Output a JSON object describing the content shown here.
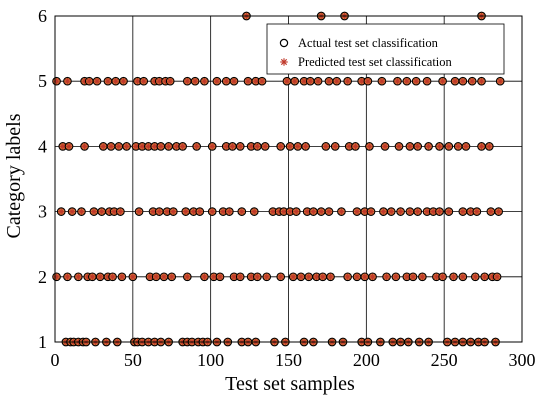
{
  "chart_data": {
    "type": "scatter",
    "title": "",
    "xlabel": "Test set samples",
    "ylabel": "Category labels",
    "xlim": [
      0,
      300
    ],
    "ylim": [
      1,
      6
    ],
    "xticks": [
      "0",
      "50",
      "100",
      "150",
      "200",
      "250",
      "300"
    ],
    "yticks": [
      "1",
      "2",
      "3",
      "4",
      "5",
      "6"
    ],
    "grid": true,
    "legend_position": "top-right",
    "series": [
      {
        "name": "Actual test set classification",
        "marker": "open-circle",
        "color": "#000000",
        "points": [
          [
            7,
            1
          ],
          [
            10,
            1
          ],
          [
            12,
            1
          ],
          [
            15,
            1
          ],
          [
            18,
            1
          ],
          [
            20,
            1
          ],
          [
            26,
            1
          ],
          [
            33,
            1
          ],
          [
            40,
            1
          ],
          [
            51,
            1
          ],
          [
            53,
            1
          ],
          [
            56,
            1
          ],
          [
            60,
            1
          ],
          [
            64,
            1
          ],
          [
            68,
            1
          ],
          [
            73,
            1
          ],
          [
            82,
            1
          ],
          [
            85,
            1
          ],
          [
            88,
            1
          ],
          [
            92,
            1
          ],
          [
            95,
            1
          ],
          [
            98,
            1
          ],
          [
            104,
            1
          ],
          [
            111,
            1
          ],
          [
            120,
            1
          ],
          [
            124,
            1
          ],
          [
            129,
            1
          ],
          [
            141,
            1
          ],
          [
            148,
            1
          ],
          [
            160,
            1
          ],
          [
            166,
            1
          ],
          [
            178,
            1
          ],
          [
            185,
            1
          ],
          [
            197,
            1
          ],
          [
            201,
            1
          ],
          [
            209,
            1
          ],
          [
            217,
            1
          ],
          [
            222,
            1
          ],
          [
            227,
            1
          ],
          [
            234,
            1
          ],
          [
            240,
            1
          ],
          [
            252,
            1
          ],
          [
            257,
            1
          ],
          [
            262,
            1
          ],
          [
            267,
            1
          ],
          [
            272,
            1
          ],
          [
            276,
            1
          ],
          [
            283,
            1
          ],
          [
            1,
            2
          ],
          [
            8,
            2
          ],
          [
            15,
            2
          ],
          [
            21,
            2
          ],
          [
            24,
            2
          ],
          [
            29,
            2
          ],
          [
            34,
            2
          ],
          [
            37,
            2
          ],
          [
            43,
            2
          ],
          [
            50,
            2
          ],
          [
            61,
            2
          ],
          [
            65,
            2
          ],
          [
            70,
            2
          ],
          [
            75,
            2
          ],
          [
            85,
            2
          ],
          [
            96,
            2
          ],
          [
            102,
            2
          ],
          [
            106,
            2
          ],
          [
            115,
            2
          ],
          [
            119,
            2
          ],
          [
            126,
            2
          ],
          [
            130,
            2
          ],
          [
            136,
            2
          ],
          [
            145,
            2
          ],
          [
            153,
            2
          ],
          [
            158,
            2
          ],
          [
            163,
            2
          ],
          [
            168,
            2
          ],
          [
            172,
            2
          ],
          [
            177,
            2
          ],
          [
            188,
            2
          ],
          [
            194,
            2
          ],
          [
            199,
            2
          ],
          [
            204,
            2
          ],
          [
            213,
            2
          ],
          [
            219,
            2
          ],
          [
            226,
            2
          ],
          [
            230,
            2
          ],
          [
            236,
            2
          ],
          [
            245,
            2
          ],
          [
            249,
            2
          ],
          [
            256,
            2
          ],
          [
            262,
            2
          ],
          [
            270,
            2
          ],
          [
            276,
            2
          ],
          [
            281,
            2
          ],
          [
            284,
            2
          ],
          [
            4,
            3
          ],
          [
            11,
            3
          ],
          [
            17,
            3
          ],
          [
            25,
            3
          ],
          [
            30,
            3
          ],
          [
            35,
            3
          ],
          [
            38,
            3
          ],
          [
            42,
            3
          ],
          [
            54,
            3
          ],
          [
            63,
            3
          ],
          [
            67,
            3
          ],
          [
            72,
            3
          ],
          [
            76,
            3
          ],
          [
            84,
            3
          ],
          [
            89,
            3
          ],
          [
            93,
            3
          ],
          [
            101,
            3
          ],
          [
            108,
            3
          ],
          [
            112,
            3
          ],
          [
            120,
            3
          ],
          [
            128,
            3
          ],
          [
            140,
            3
          ],
          [
            144,
            3
          ],
          [
            147,
            3
          ],
          [
            151,
            3
          ],
          [
            155,
            3
          ],
          [
            162,
            3
          ],
          [
            166,
            3
          ],
          [
            171,
            3
          ],
          [
            176,
            3
          ],
          [
            184,
            3
          ],
          [
            194,
            3
          ],
          [
            199,
            3
          ],
          [
            203,
            3
          ],
          [
            211,
            3
          ],
          [
            216,
            3
          ],
          [
            222,
            3
          ],
          [
            228,
            3
          ],
          [
            233,
            3
          ],
          [
            239,
            3
          ],
          [
            243,
            3
          ],
          [
            247,
            3
          ],
          [
            253,
            3
          ],
          [
            262,
            3
          ],
          [
            267,
            3
          ],
          [
            271,
            3
          ],
          [
            280,
            3
          ],
          [
            285,
            3
          ],
          [
            5,
            4
          ],
          [
            9,
            4
          ],
          [
            19,
            4
          ],
          [
            31,
            4
          ],
          [
            36,
            4
          ],
          [
            41,
            4
          ],
          [
            46,
            4
          ],
          [
            52,
            4
          ],
          [
            56,
            4
          ],
          [
            60,
            4
          ],
          [
            64,
            4
          ],
          [
            68,
            4
          ],
          [
            73,
            4
          ],
          [
            78,
            4
          ],
          [
            82,
            4
          ],
          [
            91,
            4
          ],
          [
            101,
            4
          ],
          [
            110,
            4
          ],
          [
            114,
            4
          ],
          [
            119,
            4
          ],
          [
            126,
            4
          ],
          [
            130,
            4
          ],
          [
            135,
            4
          ],
          [
            145,
            4
          ],
          [
            151,
            4
          ],
          [
            156,
            4
          ],
          [
            161,
            4
          ],
          [
            174,
            4
          ],
          [
            180,
            4
          ],
          [
            189,
            4
          ],
          [
            193,
            4
          ],
          [
            202,
            4
          ],
          [
            212,
            4
          ],
          [
            221,
            4
          ],
          [
            228,
            4
          ],
          [
            233,
            4
          ],
          [
            240,
            4
          ],
          [
            247,
            4
          ],
          [
            253,
            4
          ],
          [
            259,
            4
          ],
          [
            264,
            4
          ],
          [
            274,
            4
          ],
          [
            279,
            4
          ],
          [
            1,
            5
          ],
          [
            8,
            5
          ],
          [
            19,
            5
          ],
          [
            22,
            5
          ],
          [
            27,
            5
          ],
          [
            34,
            5
          ],
          [
            39,
            5
          ],
          [
            44,
            5
          ],
          [
            53,
            5
          ],
          [
            57,
            5
          ],
          [
            64,
            5
          ],
          [
            67,
            5
          ],
          [
            71,
            5
          ],
          [
            74,
            5
          ],
          [
            85,
            5
          ],
          [
            90,
            5
          ],
          [
            96,
            5
          ],
          [
            104,
            5
          ],
          [
            110,
            5
          ],
          [
            115,
            5
          ],
          [
            124,
            5
          ],
          [
            129,
            5
          ],
          [
            133,
            5
          ],
          [
            149,
            5
          ],
          [
            154,
            5
          ],
          [
            160,
            5
          ],
          [
            164,
            5
          ],
          [
            169,
            5
          ],
          [
            176,
            5
          ],
          [
            181,
            5
          ],
          [
            188,
            5
          ],
          [
            197,
            5
          ],
          [
            201,
            5
          ],
          [
            210,
            5
          ],
          [
            220,
            5
          ],
          [
            226,
            5
          ],
          [
            232,
            5
          ],
          [
            239,
            5
          ],
          [
            249,
            5
          ],
          [
            257,
            5
          ],
          [
            262,
            5
          ],
          [
            268,
            5
          ],
          [
            274,
            5
          ],
          [
            286,
            5
          ],
          [
            123,
            6
          ],
          [
            171,
            6
          ],
          [
            186,
            6
          ],
          [
            274,
            6
          ]
        ]
      },
      {
        "name": "Predicted test set classification",
        "marker": "asterisk",
        "color": "#c0392b",
        "points": "same as actual test set classification"
      }
    ]
  }
}
